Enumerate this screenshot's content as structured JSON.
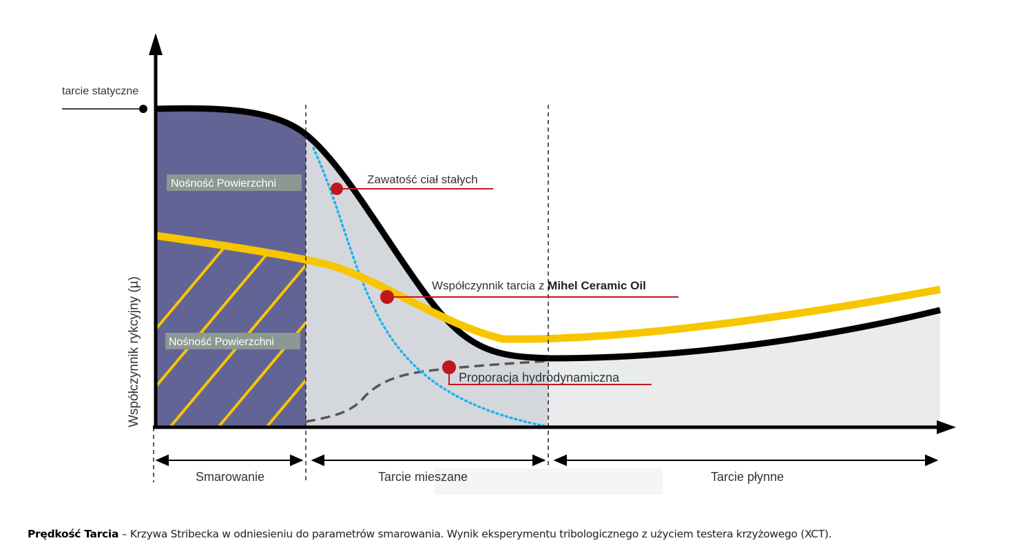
{
  "diagram": {
    "static_friction_label": "tarcie statyczne",
    "y_axis_label": "Współczynnik rykcyjny (µ)",
    "surface_capacity_label_top": "Nośność Powierzchni",
    "surface_capacity_label_bottom": "Nośność Powierzchni",
    "annotations": {
      "solids_content": "Zawatość ciał stałych",
      "friction_coefficient_prefix": "Współczynnik tarcia z ",
      "friction_coefficient_product": "Mihel Ceramic Oil",
      "hydrodynamic_proportion": "Proporacja hydrodynamiczna"
    },
    "regimes": [
      "Smarowanie",
      "Tarcie mieszane",
      "Tarcie płynne"
    ],
    "colors": {
      "boundary_region": "#636496",
      "mixed_region": "#d4d7dc",
      "fluid_region": "#e9ebed",
      "stribeck_curve": "#000000",
      "mihel_curve": "#f7c600",
      "solids_curve": "#1ab4ea",
      "marker": "#c0161c"
    }
  },
  "caption": {
    "bold": "Prędkość Tarcia",
    "text": " – Krzywa Stribecka w odniesieniu do parametrów smarowania. Wynik eksperymentu tribologicznego z użyciem testera krzyżowego (XCT)."
  }
}
